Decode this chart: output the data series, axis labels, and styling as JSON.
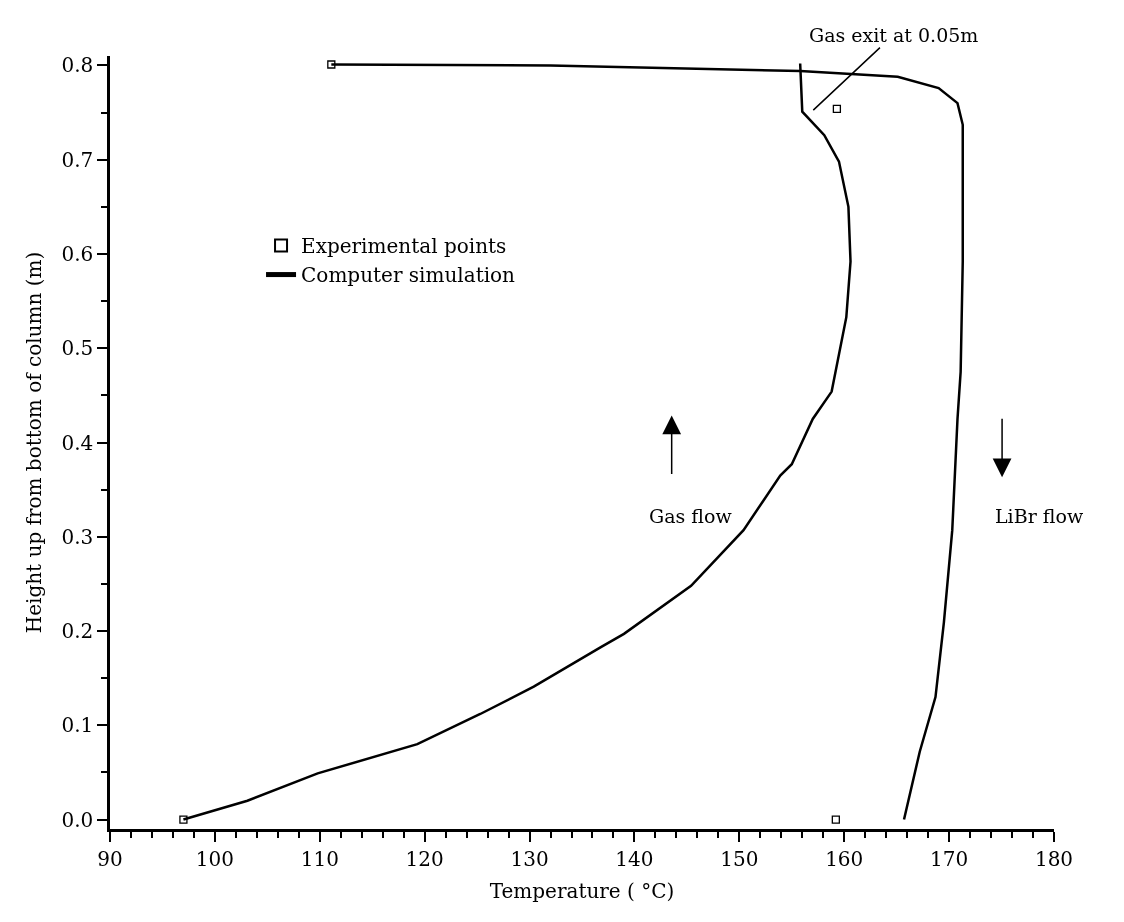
{
  "chart_data": {
    "type": "line",
    "xlabel": "Temperature ( °C)",
    "ylabel": "Height up from bottom of column (m)",
    "xlim": [
      90,
      180
    ],
    "ylim": [
      -0.01,
      0.81
    ],
    "xticks": [
      90,
      100,
      110,
      120,
      130,
      140,
      150,
      160,
      170,
      180
    ],
    "yticks": [
      {
        "value": 0,
        "label": "0.0"
      },
      {
        "value": 0.1,
        "label": "0.1"
      },
      {
        "value": 0.2,
        "label": "0.2"
      },
      {
        "value": 0.3,
        "label": "0.3"
      },
      {
        "value": 0.4,
        "label": "0.4"
      },
      {
        "value": 0.5,
        "label": "0.5"
      },
      {
        "value": 0.6,
        "label": "0.6"
      },
      {
        "value": 0.7,
        "label": "0.7"
      },
      {
        "value": 0.8,
        "label": "0.8"
      }
    ],
    "legend": "top left",
    "line_style": "solid",
    "series": [
      {
        "name": "Experimental points",
        "type": "scatter",
        "marker": "square",
        "color": "#000000",
        "x": [
          97.0,
          111.1,
          159.3,
          159.2
        ],
        "values": [
          0.0,
          0.801,
          0.754,
          0.0
        ]
      },
      {
        "name": "Computer simulation",
        "marker": "none",
        "color": "#000000",
        "x": [
          97.0,
          103.1,
          109.8,
          119.3,
          125.3,
          130.4,
          136.8,
          139.0,
          145.4,
          150.4,
          153.9,
          155.0,
          157.0,
          158.8,
          160.2,
          160.6,
          160.4,
          159.5,
          158.1,
          156.0,
          155.8
        ],
        "values": [
          0.0,
          0.02,
          0.049,
          0.08,
          0.112,
          0.141,
          0.183,
          0.197,
          0.248,
          0.307,
          0.365,
          0.377,
          0.425,
          0.454,
          0.533,
          0.592,
          0.65,
          0.698,
          0.726,
          0.751,
          0.802
        ]
      },
      {
        "marker": "none",
        "color": "#000000",
        "x": [
          111.1,
          132.0,
          155.8,
          165.1,
          169.0,
          170.8,
          171.3,
          171.3,
          171.1,
          170.8,
          170.3,
          169.5,
          168.7,
          167.2,
          165.7
        ],
        "values": [
          0.801,
          0.8,
          0.794,
          0.788,
          0.776,
          0.76,
          0.737,
          0.592,
          0.475,
          0.425,
          0.307,
          0.209,
          0.13,
          0.072,
          0.0
        ]
      }
    ],
    "annotations": [
      "Gas exit at 0.05m",
      "Gas flow",
      "LiBr flow"
    ]
  }
}
